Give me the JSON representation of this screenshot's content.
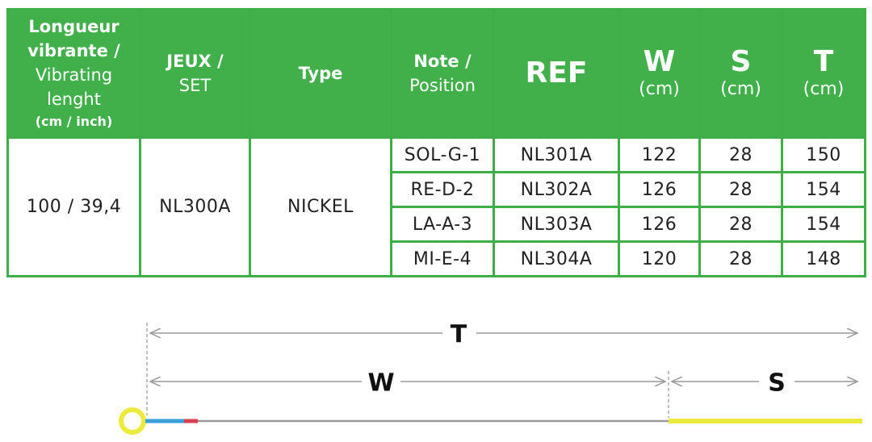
{
  "table": {
    "header": [
      {
        "lines": [
          "Longueur vibrante /",
          "Vibrating lenght",
          "(cm / inch)"
        ]
      },
      {
        "lines": [
          "JEUX /",
          "SET"
        ]
      },
      {
        "lines": [
          "Type"
        ]
      },
      {
        "lines": [
          "Note /",
          "Position"
        ]
      },
      {
        "lines": [
          "REF"
        ]
      },
      {
        "lines": [
          "W",
          "(cm)"
        ]
      },
      {
        "lines": [
          "S",
          "(cm)"
        ]
      },
      {
        "lines": [
          "T",
          "(cm)"
        ]
      }
    ],
    "common": [
      "100 / 39,4",
      "NL300A",
      "NICKEL"
    ],
    "rows": [
      [
        "SOL-G-1",
        "NL301A",
        122,
        28,
        150
      ],
      [
        "RE-D-2",
        "NL302A",
        126,
        28,
        154
      ],
      [
        "LA-A-3",
        "NL303A",
        126,
        28,
        154
      ],
      [
        "MI-E-4",
        "NL304A",
        120,
        28,
        148
      ]
    ]
  },
  "diagram": {
    "total": "T",
    "vibrating": "W",
    "silk": "S"
  }
}
